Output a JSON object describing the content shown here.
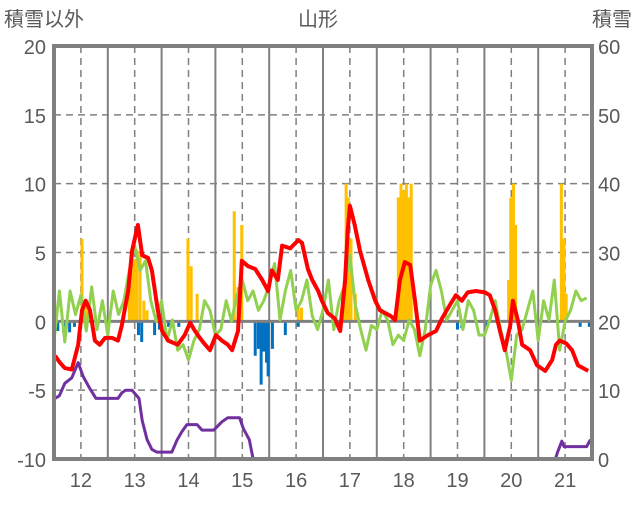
{
  "chart_data": {
    "type": "line",
    "title": "山形",
    "ylabel_left": "積雪以外",
    "ylabel_right": "積雪",
    "ylim_left": [
      -10,
      20
    ],
    "ylim_right": [
      0,
      60
    ],
    "yticks_left": [
      "20",
      "15",
      "10",
      "5",
      "0",
      "-5",
      "-10"
    ],
    "yticks_right": [
      "60",
      "50",
      "40",
      "30",
      "20",
      "10",
      "0"
    ],
    "xlim": [
      11.5,
      21.5
    ],
    "xticks": [
      "12",
      "13",
      "14",
      "15",
      "16",
      "17",
      "18",
      "19",
      "20",
      "21"
    ],
    "grid": true,
    "colors": {
      "red": "#ff0000",
      "green": "#92d050",
      "purple": "#7030a0",
      "orange": "#ffc000",
      "blue": "#0070c0",
      "axis": "#808080"
    },
    "series": [
      {
        "name": "red",
        "color": "#ff0000",
        "points": [
          [
            11.52,
            -2.5
          ],
          [
            11.61,
            -3
          ],
          [
            11.7,
            -3.4
          ],
          [
            11.83,
            -3.5
          ],
          [
            11.95,
            -1.7
          ],
          [
            12.02,
            0.8
          ],
          [
            12.09,
            1.5
          ],
          [
            12.17,
            0.8
          ],
          [
            12.26,
            -1.4
          ],
          [
            12.35,
            -1.7
          ],
          [
            12.45,
            -1.2
          ],
          [
            12.58,
            -1.2
          ],
          [
            12.69,
            -1.4
          ],
          [
            12.76,
            -0.3
          ],
          [
            12.88,
            2.2
          ],
          [
            12.95,
            5.1
          ],
          [
            13.06,
            7
          ],
          [
            13.14,
            4.8
          ],
          [
            13.25,
            4.6
          ],
          [
            13.32,
            3.7
          ],
          [
            13.43,
            0.8
          ],
          [
            13.51,
            -0.7
          ],
          [
            13.62,
            -1.4
          ],
          [
            13.8,
            -1.7
          ],
          [
            13.93,
            -1
          ],
          [
            14.03,
            -0.1
          ],
          [
            14.12,
            -0.7
          ],
          [
            14.21,
            -1.2
          ],
          [
            14.31,
            -1.7
          ],
          [
            14.4,
            -2.1
          ],
          [
            14.51,
            -1
          ],
          [
            14.62,
            -1.4
          ],
          [
            14.73,
            -1.7
          ],
          [
            14.81,
            -2.1
          ],
          [
            14.92,
            -0.7
          ],
          [
            14.99,
            4.4
          ],
          [
            15.11,
            4
          ],
          [
            15.24,
            3.8
          ],
          [
            15.37,
            3
          ],
          [
            15.48,
            2.2
          ],
          [
            15.55,
            3.7
          ],
          [
            15.66,
            3
          ],
          [
            15.74,
            5.5
          ],
          [
            15.89,
            5.3
          ],
          [
            16.04,
            5.9
          ],
          [
            16.11,
            5.7
          ],
          [
            16.22,
            3.8
          ],
          [
            16.3,
            3
          ],
          [
            16.41,
            2.2
          ],
          [
            16.48,
            1.5
          ],
          [
            16.59,
            0.6
          ],
          [
            16.72,
            0.2
          ],
          [
            16.82,
            -0.7
          ],
          [
            16.91,
            3
          ],
          [
            16.96,
            6.6
          ],
          [
            17.0,
            8.4
          ],
          [
            17.09,
            7
          ],
          [
            17.19,
            5.1
          ],
          [
            17.34,
            3
          ],
          [
            17.47,
            1.5
          ],
          [
            17.56,
            0.8
          ],
          [
            17.75,
            0.4
          ],
          [
            17.84,
            0.1
          ],
          [
            17.93,
            3
          ],
          [
            18.02,
            4.3
          ],
          [
            18.12,
            4.1
          ],
          [
            18.21,
            1.5
          ],
          [
            18.3,
            -1.4
          ],
          [
            18.45,
            -1
          ],
          [
            18.6,
            -0.7
          ],
          [
            18.71,
            0.2
          ],
          [
            18.86,
            1.2
          ],
          [
            18.97,
            1.9
          ],
          [
            19.08,
            1.5
          ],
          [
            19.19,
            2.1
          ],
          [
            19.34,
            2.2
          ],
          [
            19.51,
            2.1
          ],
          [
            19.6,
            1.9
          ],
          [
            19.7,
            0.8
          ],
          [
            19.79,
            -0.7
          ],
          [
            19.88,
            -2.1
          ],
          [
            19.98,
            -0.3
          ],
          [
            20.03,
            1.5
          ],
          [
            20.12,
            0.1
          ],
          [
            20.2,
            -1.7
          ],
          [
            20.35,
            -2.1
          ],
          [
            20.48,
            -3.2
          ],
          [
            20.63,
            -3.6
          ],
          [
            20.76,
            -2.8
          ],
          [
            20.83,
            -1.7
          ],
          [
            20.9,
            -1.4
          ],
          [
            21.02,
            -1.6
          ],
          [
            21.13,
            -2.1
          ],
          [
            21.24,
            -3.2
          ],
          [
            21.43,
            -3.6
          ]
        ]
      },
      {
        "name": "purple",
        "color": "#7030a0",
        "points": [
          [
            11.52,
            -5.6
          ],
          [
            11.6,
            -5.4
          ],
          [
            11.7,
            -4.5
          ],
          [
            11.83,
            -4.1
          ],
          [
            11.95,
            -3
          ],
          [
            12.04,
            -4
          ],
          [
            12.17,
            -4.9
          ],
          [
            12.28,
            -5.6
          ],
          [
            12.69,
            -5.6
          ],
          [
            12.76,
            -5.2
          ],
          [
            12.83,
            -5
          ],
          [
            12.95,
            -5
          ],
          [
            13.08,
            -5.6
          ],
          [
            13.14,
            -7.2
          ],
          [
            13.23,
            -8.6
          ],
          [
            13.32,
            -9.3
          ],
          [
            13.41,
            -9.5
          ],
          [
            13.69,
            -9.5
          ],
          [
            13.79,
            -8.6
          ],
          [
            13.88,
            -8
          ],
          [
            13.97,
            -7.5
          ],
          [
            14.16,
            -7.5
          ],
          [
            14.25,
            -7.9
          ],
          [
            14.47,
            -7.9
          ],
          [
            14.62,
            -7.3
          ],
          [
            14.73,
            -7
          ],
          [
            14.95,
            -7
          ],
          [
            15.02,
            -7.8
          ],
          [
            15.13,
            -8.6
          ],
          [
            15.2,
            -10
          ],
          [
            20.82,
            -10
          ],
          [
            20.86,
            -9.5
          ],
          [
            20.94,
            -8.7
          ],
          [
            20.98,
            -9.1
          ],
          [
            21.4,
            -9.1
          ],
          [
            21.47,
            -8.6
          ]
        ]
      },
      {
        "name": "green",
        "color": "#92d050",
        "x_start": 11.5,
        "x_step": 0.1,
        "values": [
          -1.4,
          2.2,
          -1.5,
          2.2,
          0.5,
          1.9,
          -0.7,
          2.5,
          -0.6,
          1.5,
          -1.0,
          2.2,
          0.5,
          1.5,
          3.7,
          5.5,
          3.7,
          4.4,
          1.5,
          0.0,
          1.5,
          -1.4,
          0.1,
          -2.1,
          -1.7,
          -2.8,
          -1.4,
          -0.6,
          1.5,
          0.8,
          -1.0,
          -0.6,
          1.5,
          0.0,
          1.9,
          3.0,
          1.5,
          2.2,
          0.8,
          1.5,
          2.6,
          4.2,
          0.1,
          2.2,
          3.7,
          0.8,
          1.5,
          3.0,
          0.4,
          -0.6,
          0.8,
          3.0,
          -0.6,
          1.5,
          2.6,
          4.8,
          1.2,
          -0.6,
          -2.1,
          -0.3,
          -0.6,
          0.8,
          0.1,
          -1.7,
          -1.0,
          -1.4,
          0.1,
          -0.6,
          -2.5,
          -0.6,
          2.6,
          3.7,
          2.2,
          0.1,
          0.8,
          1.5,
          -0.6,
          1.5,
          0.8,
          -1.0,
          -1.0,
          0.1,
          1.5,
          -0.6,
          -2.1,
          -4.3,
          -1.0,
          -0.6,
          0.8,
          2.2,
          -1.4,
          1.5,
          0.1,
          3.0,
          -2.1,
          0.0,
          0.8,
          2.2,
          1.5,
          1.7
        ]
      }
    ],
    "bars_orange": [
      [
        12.02,
        6
      ],
      [
        12.09,
        1.5
      ],
      [
        12.9,
        3
      ],
      [
        12.95,
        5
      ],
      [
        13.0,
        4.5
      ],
      [
        13.04,
        5.2
      ],
      [
        13.1,
        5
      ],
      [
        13.17,
        1.5
      ],
      [
        13.23,
        0.8
      ],
      [
        13.99,
        6
      ],
      [
        14.05,
        4
      ],
      [
        14.16,
        2
      ],
      [
        14.85,
        8
      ],
      [
        14.92,
        2.5
      ],
      [
        14.99,
        7
      ],
      [
        16.04,
        1
      ],
      [
        16.1,
        1
      ],
      [
        16.9,
        3
      ],
      [
        16.93,
        10
      ],
      [
        16.97,
        9
      ],
      [
        17.02,
        6
      ],
      [
        17.1,
        2
      ],
      [
        17.9,
        9
      ],
      [
        17.95,
        10
      ],
      [
        18.0,
        9.5
      ],
      [
        18.05,
        10
      ],
      [
        18.1,
        9
      ],
      [
        18.14,
        10
      ],
      [
        19.95,
        3
      ],
      [
        19.99,
        9
      ],
      [
        20.04,
        10
      ],
      [
        20.08,
        7
      ],
      [
        20.93,
        10
      ],
      [
        20.98,
        6
      ],
      [
        21.02,
        2
      ]
    ],
    "bars_blue": [
      [
        11.57,
        -0.7
      ],
      [
        11.68,
        -0.8
      ],
      [
        11.79,
        -0.8
      ],
      [
        11.88,
        -0.4
      ],
      [
        13.07,
        -1
      ],
      [
        13.13,
        -1.5
      ],
      [
        13.37,
        -1
      ],
      [
        13.46,
        -0.6
      ],
      [
        13.63,
        -0.4
      ],
      [
        13.82,
        -0.4
      ],
      [
        15.24,
        -2.5
      ],
      [
        15.3,
        -2
      ],
      [
        15.35,
        -4.6
      ],
      [
        15.4,
        -2.2
      ],
      [
        15.45,
        -3
      ],
      [
        15.48,
        -4
      ],
      [
        15.56,
        -2
      ],
      [
        15.8,
        -1
      ],
      [
        16.04,
        -0.4
      ],
      [
        19.0,
        -0.6
      ],
      [
        19.08,
        -0.5
      ],
      [
        19.55,
        -0.4
      ],
      [
        21.28,
        -0.4
      ],
      [
        21.45,
        -0.4
      ]
    ]
  }
}
